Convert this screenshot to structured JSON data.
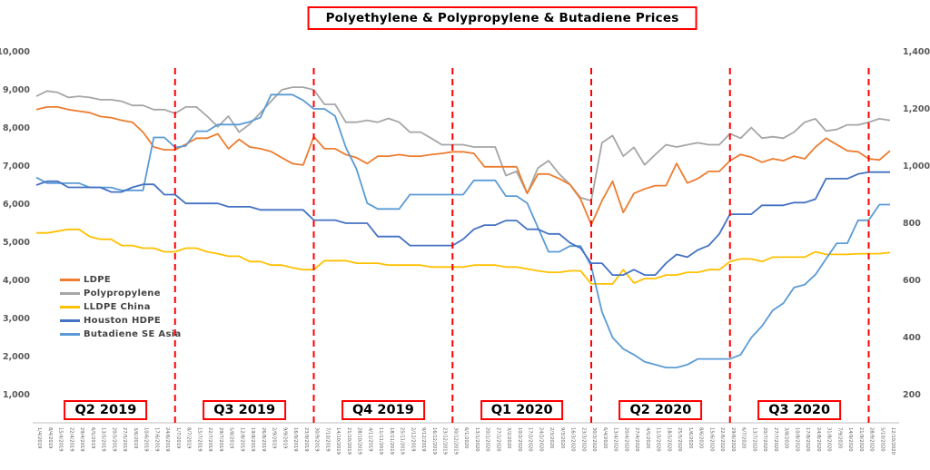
{
  "title": "Polyethylene & Polypropylene & Butadiene Prices",
  "chart_data": {
    "type": "line",
    "grid": false,
    "legend_position": "middle-left",
    "x_label_rotation_deg": 90,
    "x": [
      "1/4/2019",
      "8/4/2019",
      "15/4/2019",
      "22/4/2019",
      "29/4/2019",
      "6/5/2019",
      "13/5/2019",
      "20/5/2019",
      "27/5/2019",
      "3/6/2019",
      "10/6/2019",
      "17/6/2019",
      "24/6/2019",
      "1/7/2019",
      "8/7/2019",
      "15/7/2019",
      "22/7/2019",
      "29/7/2019",
      "5/8/2019",
      "12/8/2019",
      "19/8/2019",
      "26/8/2019",
      "2/9/2019",
      "9/9/2019",
      "16/9/2019",
      "23/9/2019",
      "30/9/2019",
      "7/10/2019",
      "14/10/2019",
      "21/10/2019",
      "28/10/2019",
      "4/11/2019",
      "11/11/2019",
      "18/11/2019",
      "25/11/2019",
      "2/12/2019",
      "9/12/2019",
      "16/12/2019",
      "23/12/2019",
      "30/12/2019",
      "6/1/2020",
      "13/1/2020",
      "20/1/2020",
      "27/1/2020",
      "3/2/2020",
      "10/2/2020",
      "17/2/2020",
      "24/2/2020",
      "2/3/2020",
      "9/3/2020",
      "16/3/2020",
      "23/3/2020",
      "30/3/2020",
      "6/4/2020",
      "13/4/2020",
      "20/4/2020",
      "27/4/2020",
      "4/5/2020",
      "11/5/2020",
      "18/5/2020",
      "25/5/2020",
      "1/6/2020",
      "8/6/2020",
      "15/6/2020",
      "22/6/2020",
      "29/6/2020",
      "6/7/2020",
      "13/7/2020",
      "20/7/2020",
      "27/7/2020",
      "3/8/2020",
      "10/8/2020",
      "17/8/2020",
      "24/8/2020",
      "31/8/2020",
      "7/9/2020",
      "14/9/2020",
      "21/9/2020",
      "28/9/2020",
      "5/10/2020",
      "12/10/2020"
    ],
    "left_axis": {
      "min": 1000,
      "max": 10000,
      "step": 1000,
      "tick_labels": [
        "1,000",
        "2,000",
        "3,000",
        "4,000",
        "5,000",
        "6,000",
        "7,000",
        "8,000",
        "9,000",
        "10,000"
      ]
    },
    "right_axis": {
      "min": 200,
      "max": 1400,
      "step": 200,
      "tick_labels": [
        "200",
        "400",
        "600",
        "800",
        "1,000",
        "1,200",
        "1,400"
      ]
    },
    "series": [
      {
        "name": "LDPE",
        "axis": "left",
        "color": "#ED7D31",
        "values": [
          8480,
          8550,
          8550,
          8480,
          8440,
          8400,
          8300,
          8270,
          8200,
          8150,
          7890,
          7500,
          7425,
          7425,
          7570,
          7730,
          7730,
          7845,
          7455,
          7700,
          7500,
          7455,
          7380,
          7220,
          7065,
          7025,
          7770,
          7455,
          7455,
          7300,
          7220,
          7065,
          7260,
          7260,
          7300,
          7260,
          7260,
          7300,
          7330,
          7375,
          7375,
          7330,
          6980,
          6980,
          6980,
          6980,
          6280,
          6790,
          6790,
          6670,
          6516,
          6130,
          5460,
          6090,
          6600,
          5780,
          6280,
          6400,
          6485,
          6485,
          7070,
          6555,
          6672,
          6860,
          6860,
          7140,
          7305,
          7230,
          7100,
          7190,
          7140,
          7260,
          7190,
          7495,
          7730,
          7565,
          7400,
          7375,
          7190,
          7160,
          7400
        ]
      },
      {
        "name": "Polypropylene",
        "axis": "left",
        "color": "#A6A6A6",
        "values": [
          8830,
          8970,
          8930,
          8800,
          8830,
          8800,
          8740,
          8740,
          8700,
          8590,
          8590,
          8480,
          8480,
          8380,
          8550,
          8550,
          8310,
          8030,
          8310,
          7890,
          8100,
          8400,
          8700,
          9000,
          9070,
          9070,
          9000,
          8620,
          8620,
          8150,
          8150,
          8200,
          8150,
          8250,
          8150,
          7890,
          7890,
          7730,
          7560,
          7560,
          7560,
          7500,
          7500,
          7500,
          6750,
          6860,
          6280,
          6950,
          7140,
          6790,
          6520,
          6170,
          6090,
          7610,
          7800,
          7260,
          7490,
          7030,
          7300,
          7560,
          7500,
          7560,
          7610,
          7560,
          7560,
          7850,
          7730,
          8010,
          7730,
          7770,
          7730,
          7890,
          8150,
          8240,
          7920,
          7960,
          8080,
          8080,
          8150,
          8240,
          8200
        ]
      },
      {
        "name": "LLDPE China",
        "axis": "left",
        "color": "#FFC000",
        "values": [
          5245,
          5245,
          5290,
          5337,
          5337,
          5150,
          5078,
          5078,
          4915,
          4915,
          4845,
          4845,
          4750,
          4750,
          4845,
          4845,
          4750,
          4700,
          4633,
          4633,
          4492,
          4492,
          4400,
          4400,
          4330,
          4280,
          4280,
          4516,
          4516,
          4516,
          4450,
          4450,
          4450,
          4400,
          4400,
          4400,
          4400,
          4350,
          4350,
          4350,
          4350,
          4400,
          4400,
          4400,
          4350,
          4350,
          4300,
          4250,
          4211,
          4211,
          4250,
          4250,
          3906,
          3906,
          3906,
          4282,
          3930,
          4047,
          4047,
          4141,
          4141,
          4211,
          4211,
          4282,
          4282,
          4492,
          4563,
          4563,
          4492,
          4610,
          4610,
          4610,
          4610,
          4750,
          4680,
          4680,
          4680,
          4700,
          4700,
          4700,
          4730
        ]
      },
      {
        "name": "Houston HDPE",
        "axis": "left",
        "color": "#4472C4",
        "values": [
          6500,
          6600,
          6600,
          6440,
          6440,
          6440,
          6440,
          6320,
          6320,
          6440,
          6520,
          6520,
          6250,
          6250,
          6020,
          6020,
          6020,
          6020,
          5930,
          5930,
          5930,
          5850,
          5850,
          5850,
          5850,
          5850,
          5580,
          5580,
          5580,
          5500,
          5500,
          5500,
          5150,
          5150,
          5150,
          4915,
          4915,
          4915,
          4915,
          4915,
          5080,
          5340,
          5450,
          5450,
          5570,
          5570,
          5340,
          5340,
          5220,
          5220,
          4985,
          4845,
          4450,
          4450,
          4140,
          4140,
          4280,
          4140,
          4140,
          4450,
          4680,
          4610,
          4800,
          4915,
          5220,
          5735,
          5735,
          5735,
          5970,
          5970,
          5970,
          6040,
          6040,
          6130,
          6670,
          6670,
          6670,
          6790,
          6840,
          6840,
          6840
        ]
      },
      {
        "name": "Butadiene SE Asia",
        "axis": "right",
        "color": "#5B9BD5",
        "values": [
          960,
          940,
          940,
          940,
          940,
          925,
          925,
          925,
          915,
          915,
          915,
          1100,
          1100,
          1065,
          1070,
          1122,
          1122,
          1145,
          1145,
          1145,
          1155,
          1170,
          1250,
          1250,
          1250,
          1230,
          1200,
          1200,
          1175,
          1065,
          990,
          870,
          850,
          850,
          850,
          900,
          900,
          900,
          900,
          900,
          900,
          950,
          950,
          950,
          895,
          895,
          870,
          785,
          700,
          700,
          720,
          720,
          650,
          490,
          400,
          360,
          340,
          315,
          305,
          295,
          295,
          305,
          325,
          325,
          325,
          325,
          340,
          400,
          440,
          495,
          520,
          575,
          585,
          620,
          675,
          730,
          730,
          810,
          810,
          865,
          865
        ]
      }
    ],
    "quarter_dividers": {
      "color": "#FF0000",
      "style": "dashed",
      "week_indices": [
        13,
        26,
        39,
        52,
        65,
        78
      ]
    },
    "quarter_labels": [
      {
        "label": "Q2 2019",
        "from_week": 0,
        "to_week": 13
      },
      {
        "label": "Q3 2019",
        "from_week": 13,
        "to_week": 26
      },
      {
        "label": "Q4 2019",
        "from_week": 26,
        "to_week": 39
      },
      {
        "label": "Q1 2020",
        "from_week": 39,
        "to_week": 52
      },
      {
        "label": "Q2 2020",
        "from_week": 52,
        "to_week": 65
      },
      {
        "label": "Q3 2020",
        "from_week": 65,
        "to_week": 78
      }
    ]
  }
}
